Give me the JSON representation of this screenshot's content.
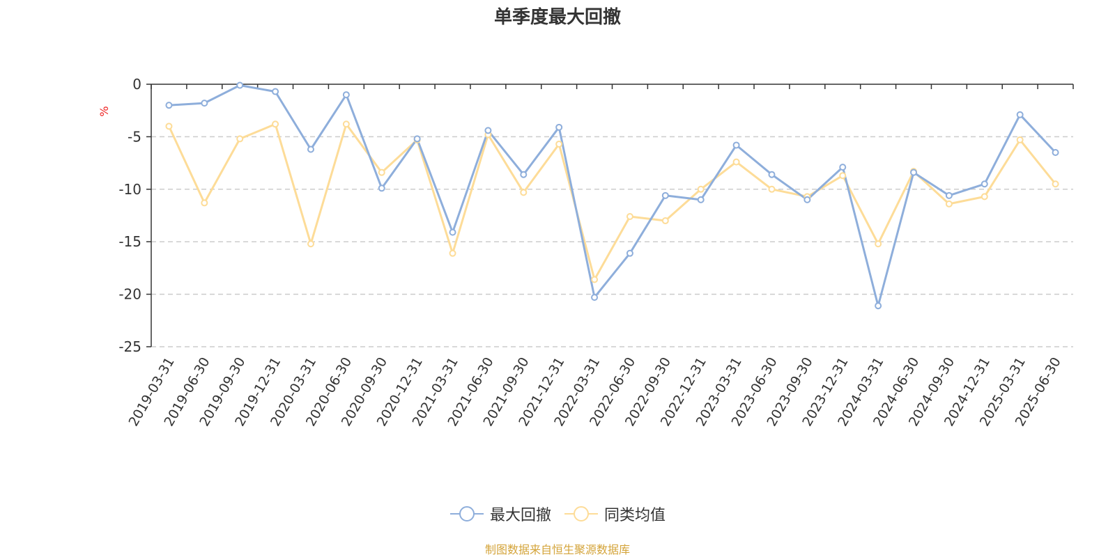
{
  "chart_data": {
    "type": "line",
    "title": "单季度最大回撤",
    "ylabel": "%",
    "ylim": [
      -25,
      0
    ],
    "yticks": [
      0,
      -5,
      -10,
      -15,
      -20,
      -25
    ],
    "grid": "horizontal dashed",
    "legend_position": "bottom-center",
    "categories": [
      "2019-03-31",
      "2019-06-30",
      "2019-09-30",
      "2019-12-31",
      "2020-03-31",
      "2020-06-30",
      "2020-09-30",
      "2020-12-31",
      "2021-03-31",
      "2021-06-30",
      "2021-09-30",
      "2021-12-31",
      "2022-03-31",
      "2022-06-30",
      "2022-09-30",
      "2022-12-31",
      "2023-03-31",
      "2023-06-30",
      "2023-09-30",
      "2023-12-31",
      "2024-03-31",
      "2024-06-30",
      "2024-09-30",
      "2024-12-31",
      "2025-03-31",
      "2025-06-30"
    ],
    "series": [
      {
        "name": "最大回撤",
        "color": "#8eaedb",
        "values": [
          -2.0,
          -1.8,
          -0.1,
          -0.7,
          -6.2,
          -1.0,
          -9.9,
          -5.2,
          -14.1,
          -4.4,
          -8.6,
          -4.1,
          -20.3,
          -16.1,
          -10.6,
          -11.0,
          -5.8,
          -8.6,
          -11.0,
          -7.9,
          -21.1,
          -8.4,
          -10.6,
          -9.5,
          -2.9,
          -6.5
        ]
      },
      {
        "name": "同类均值",
        "color": "#fddc98",
        "values": [
          -4.0,
          -11.3,
          -5.2,
          -3.8,
          -15.2,
          -3.8,
          -8.4,
          -5.3,
          -16.1,
          -4.8,
          -10.3,
          -5.7,
          -18.6,
          -12.6,
          -13.0,
          -10.0,
          -7.4,
          -10.0,
          -10.7,
          -8.7,
          -15.2,
          -8.3,
          -11.4,
          -10.7,
          -5.3,
          -9.5
        ]
      }
    ]
  },
  "footer": {
    "source": "制图数据来自恒生聚源数据库",
    "source_color": "#d4a43a"
  }
}
